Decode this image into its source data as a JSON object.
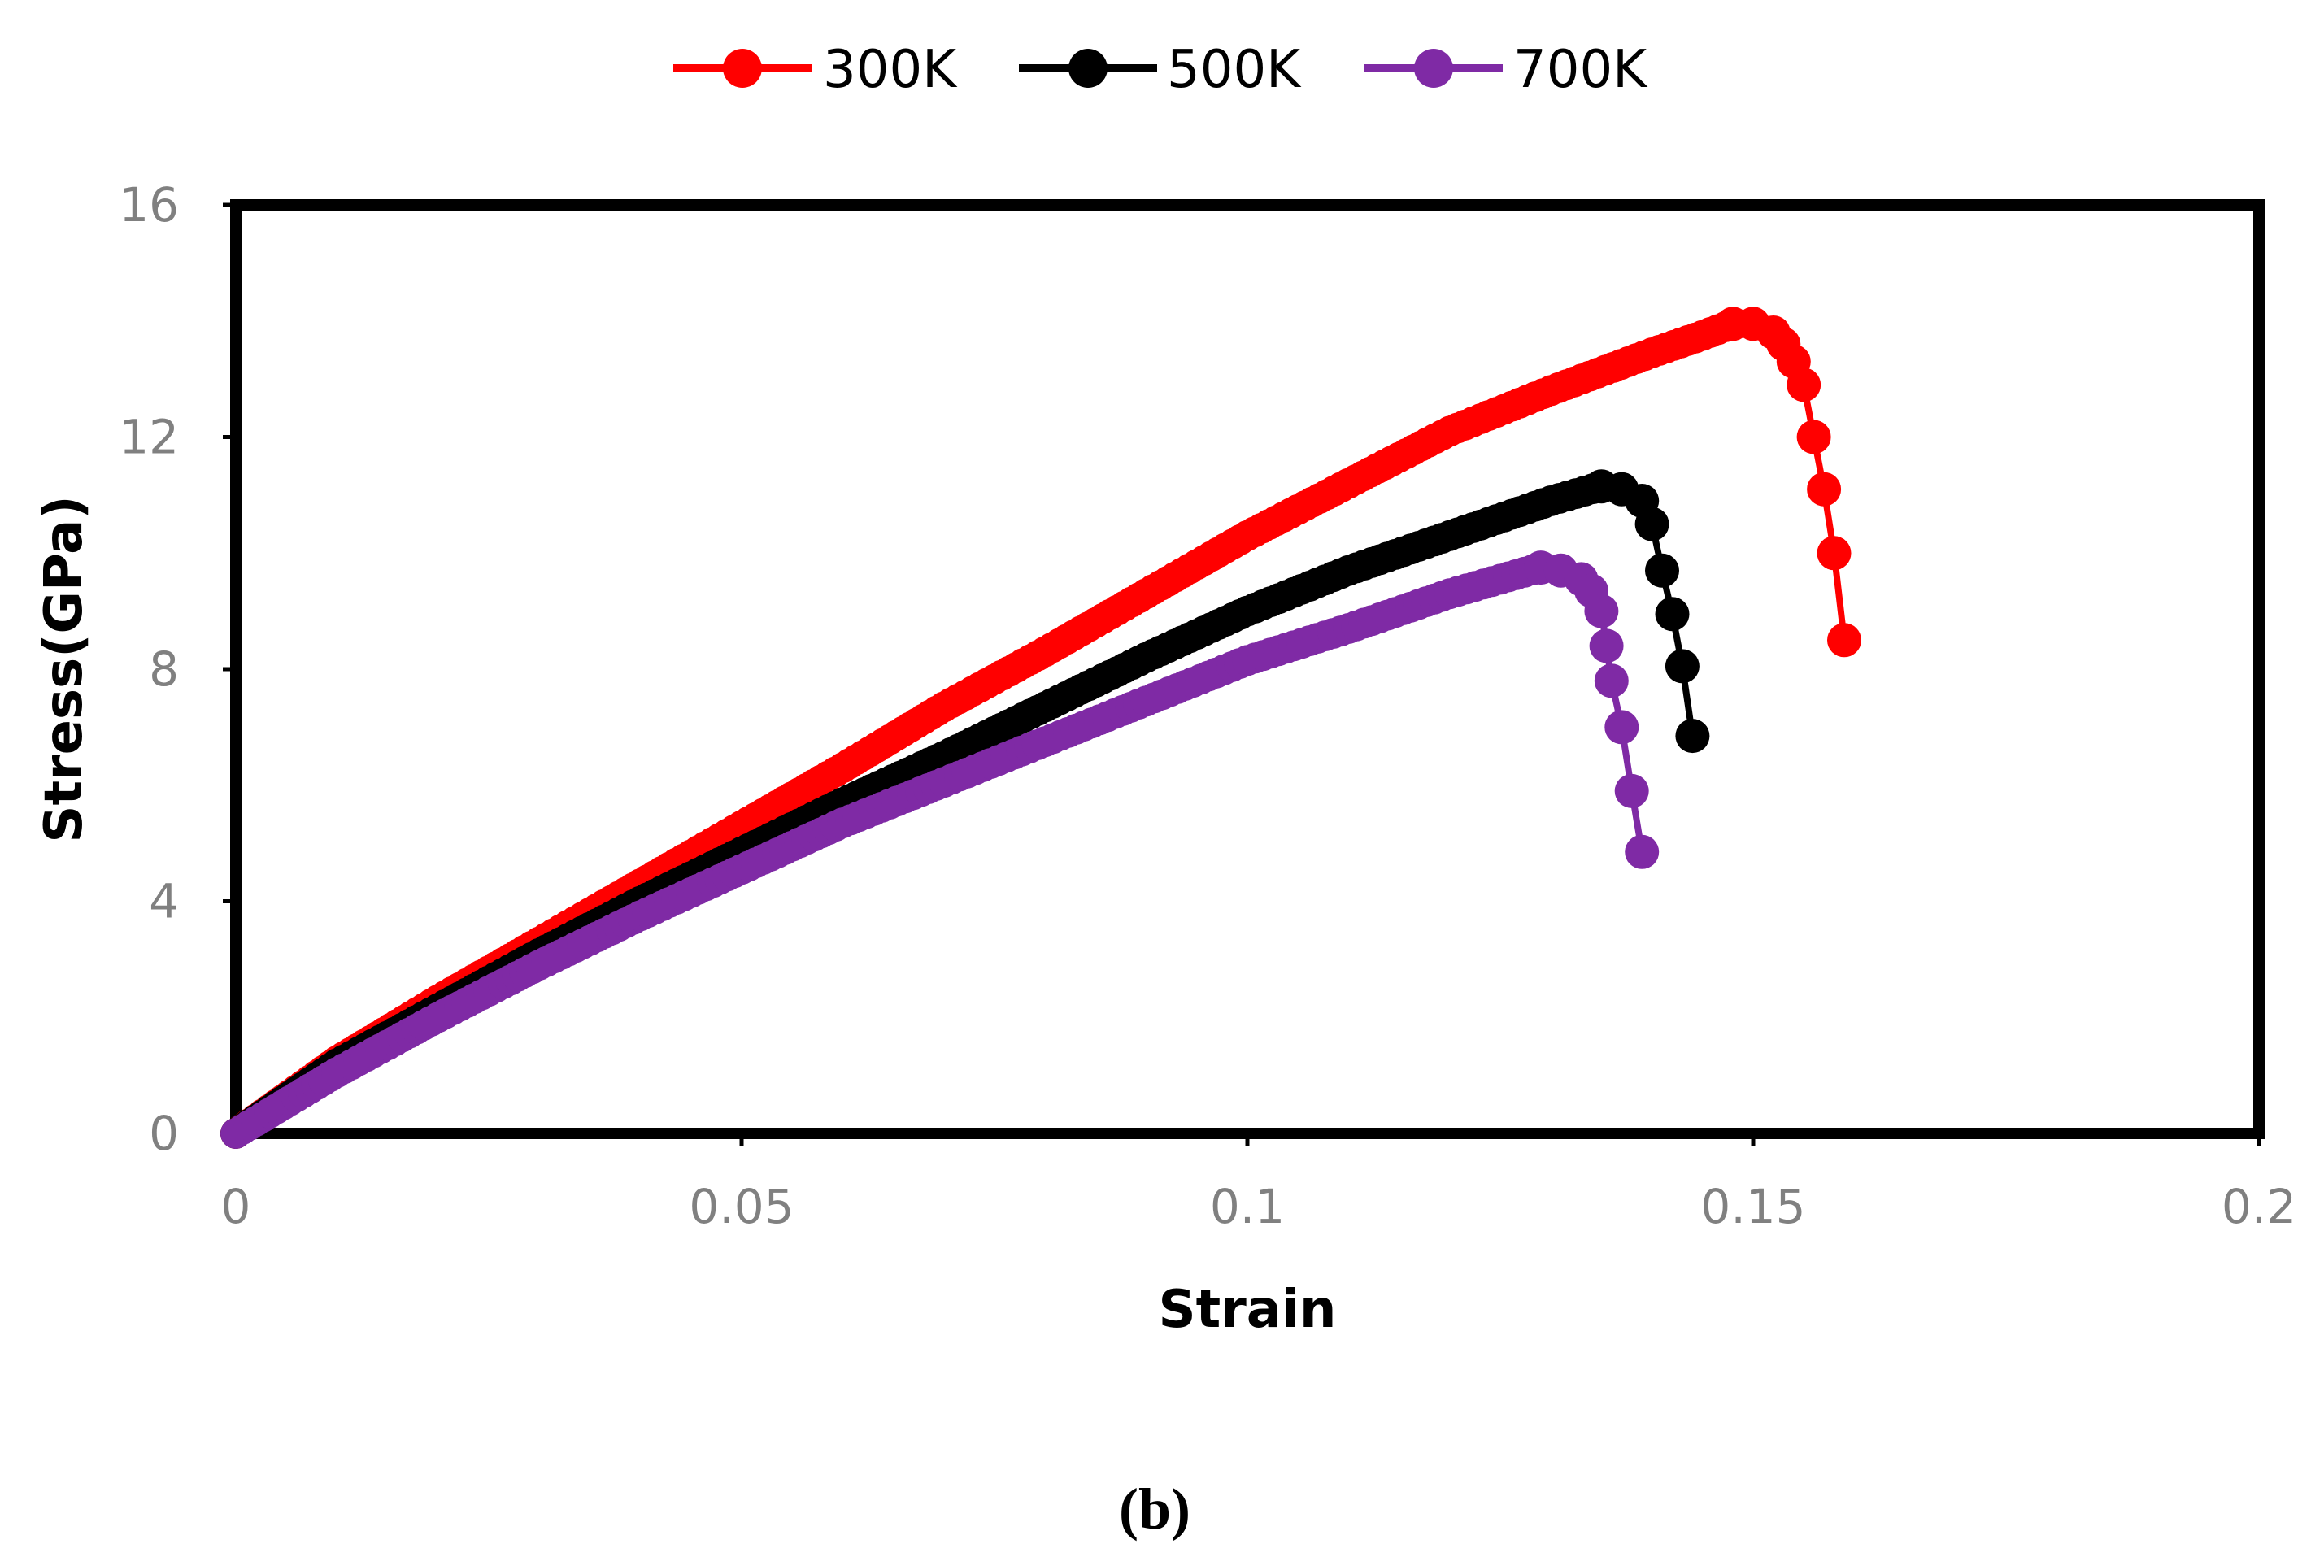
{
  "chart_data": {
    "type": "line",
    "title": "",
    "xlabel": "Strain",
    "ylabel": "Stress(GPa)",
    "caption": "(b)",
    "xlim": [
      0,
      0.2
    ],
    "ylim": [
      0,
      16
    ],
    "xticks": [
      "0",
      "0.05",
      "0.1",
      "0.15",
      "0.2"
    ],
    "yticks": [
      "0",
      "4",
      "8",
      "12",
      "16"
    ],
    "grid": false,
    "legend_position": "top-center",
    "series": [
      {
        "name": "300K",
        "color": "#ff0000",
        "points": [
          [
            0,
            0
          ],
          [
            0.01,
            1.25
          ],
          [
            0.02,
            2.3
          ],
          [
            0.03,
            3.3
          ],
          [
            0.04,
            4.3
          ],
          [
            0.05,
            5.3
          ],
          [
            0.06,
            6.3
          ],
          [
            0.07,
            7.35
          ],
          [
            0.08,
            8.3
          ],
          [
            0.09,
            9.3
          ],
          [
            0.1,
            10.3
          ],
          [
            0.11,
            11.2
          ],
          [
            0.12,
            12.1
          ],
          [
            0.13,
            12.8
          ],
          [
            0.14,
            13.45
          ],
          [
            0.145,
            13.75
          ],
          [
            0.148,
            13.95
          ],
          [
            0.15,
            13.95
          ],
          [
            0.152,
            13.8
          ],
          [
            0.153,
            13.6
          ],
          [
            0.154,
            13.3
          ],
          [
            0.155,
            12.9
          ],
          [
            0.156,
            12.0
          ],
          [
            0.157,
            11.1
          ],
          [
            0.158,
            10.0
          ],
          [
            0.159,
            8.5
          ]
        ]
      },
      {
        "name": "500K",
        "color": "#000000",
        "points": [
          [
            0,
            0
          ],
          [
            0.01,
            1.2
          ],
          [
            0.02,
            2.15
          ],
          [
            0.03,
            3.1
          ],
          [
            0.04,
            4.0
          ],
          [
            0.05,
            4.85
          ],
          [
            0.06,
            5.7
          ],
          [
            0.07,
            6.5
          ],
          [
            0.08,
            7.35
          ],
          [
            0.09,
            8.2
          ],
          [
            0.1,
            9.0
          ],
          [
            0.11,
            9.7
          ],
          [
            0.12,
            10.3
          ],
          [
            0.13,
            10.9
          ],
          [
            0.135,
            11.15
          ],
          [
            0.137,
            11.1
          ],
          [
            0.139,
            10.9
          ],
          [
            0.14,
            10.5
          ],
          [
            0.141,
            9.7
          ],
          [
            0.142,
            8.95
          ],
          [
            0.143,
            8.05
          ],
          [
            0.144,
            6.85
          ]
        ]
      },
      {
        "name": "700K",
        "color": "#7f2aa5",
        "points": [
          [
            0,
            0
          ],
          [
            0.01,
            1.05
          ],
          [
            0.02,
            2.0
          ],
          [
            0.03,
            2.9
          ],
          [
            0.04,
            3.75
          ],
          [
            0.05,
            4.55
          ],
          [
            0.06,
            5.35
          ],
          [
            0.07,
            6.05
          ],
          [
            0.08,
            6.75
          ],
          [
            0.09,
            7.45
          ],
          [
            0.1,
            8.15
          ],
          [
            0.11,
            8.7
          ],
          [
            0.12,
            9.3
          ],
          [
            0.125,
            9.55
          ],
          [
            0.129,
            9.75
          ],
          [
            0.131,
            9.7
          ],
          [
            0.133,
            9.55
          ],
          [
            0.134,
            9.35
          ],
          [
            0.135,
            9.0
          ],
          [
            0.1355,
            8.4
          ],
          [
            0.136,
            7.8
          ],
          [
            0.137,
            7.0
          ],
          [
            0.138,
            5.9
          ],
          [
            0.139,
            4.85
          ]
        ]
      }
    ]
  }
}
